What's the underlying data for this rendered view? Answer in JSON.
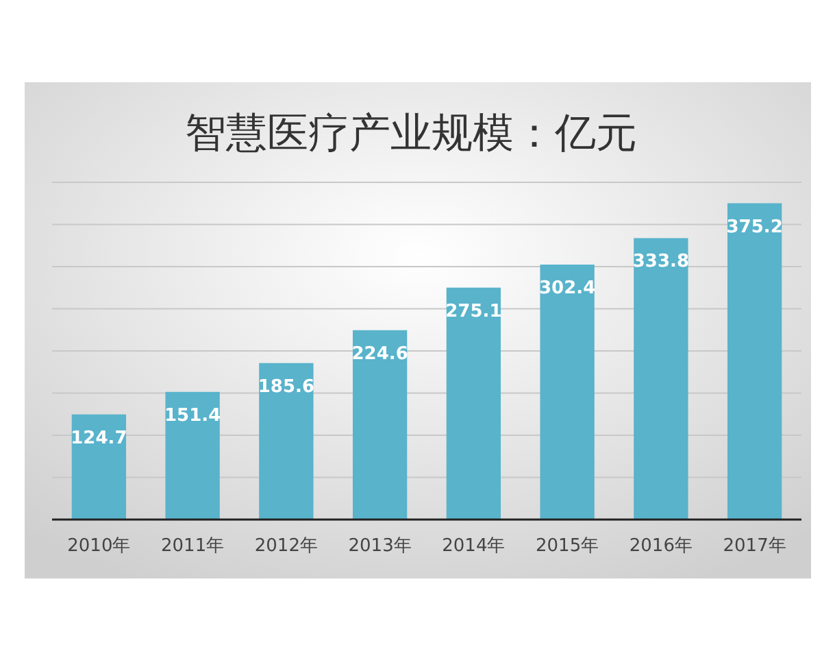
{
  "chart_data": {
    "type": "bar",
    "title": "智慧医疗产业规模：亿元",
    "categories": [
      "2010年",
      "2011年",
      "2012年",
      "2013年",
      "2014年",
      "2015年",
      "2016年",
      "2017年"
    ],
    "values": [
      124.7,
      151.4,
      185.6,
      224.6,
      275.1,
      302.4,
      333.8,
      375.2
    ],
    "color": "#58b3cb",
    "ylim": [
      0,
      400
    ],
    "yticks": [
      {
        "value": 0,
        "label": null
      },
      {
        "value": 50,
        "label": null
      },
      {
        "value": 100,
        "label": null
      },
      {
        "value": 150,
        "label": null
      },
      {
        "value": 200,
        "label": null
      },
      {
        "value": 250,
        "label": null
      },
      {
        "value": 300,
        "label": null
      },
      {
        "value": 350,
        "label": null
      },
      {
        "value": 400,
        "label": null
      }
    ],
    "grid": "y",
    "tick_labels": "x",
    "data_labels": true
  }
}
